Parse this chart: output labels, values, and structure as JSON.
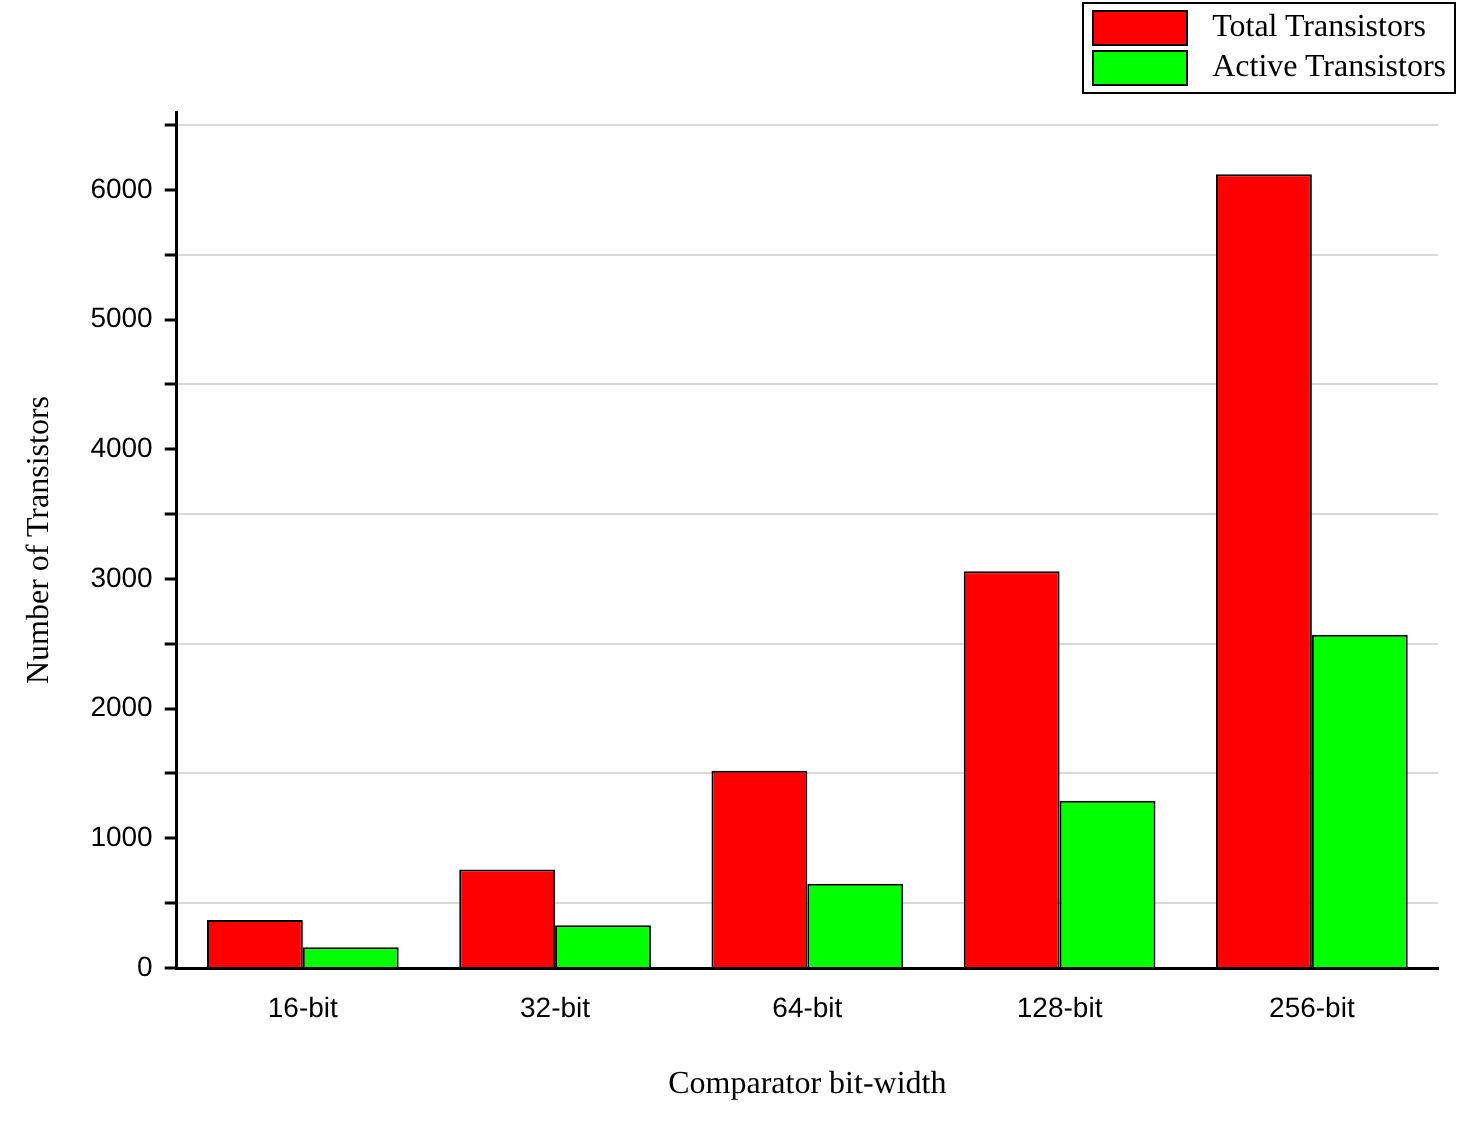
{
  "chart_data": {
    "type": "bar",
    "xlabel": "Comparator bit-width",
    "ylabel": "Number of Transistors",
    "categories": [
      "16-bit",
      "32-bit",
      "64-bit",
      "128-bit",
      "256-bit"
    ],
    "series": [
      {
        "name": "Total Transistors",
        "color": "#ff0000",
        "values": [
          370,
          760,
          1520,
          3060,
          6120
        ]
      },
      {
        "name": "Active Transistors",
        "color": "#00ff00",
        "values": [
          160,
          330,
          650,
          1290,
          2570
        ]
      }
    ],
    "ylim": [
      0,
      6600
    ],
    "yticks": [
      0,
      {
        "value": 500,
        "label": null
      },
      1000,
      {
        "value": 1500,
        "label": null
      },
      2000,
      {
        "value": 2500,
        "label": null
      },
      3000,
      {
        "value": 3500,
        "label": null
      },
      4000,
      {
        "value": 4500,
        "label": null
      },
      5000,
      {
        "value": 5500,
        "label": null
      },
      6000,
      {
        "value": 6500,
        "label": null
      }
    ],
    "grid": true,
    "legend": "top right"
  }
}
